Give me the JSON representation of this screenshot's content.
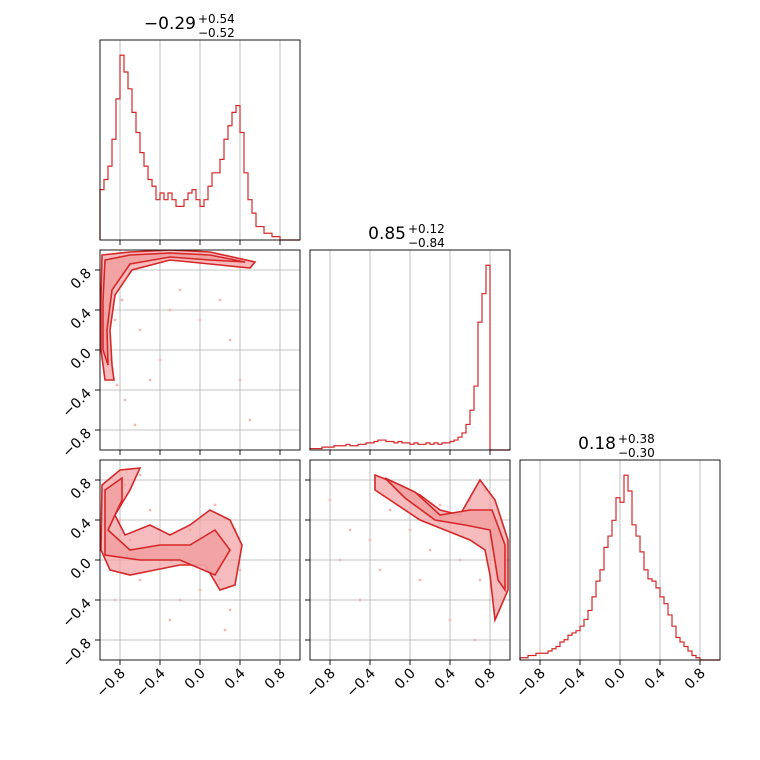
{
  "figure": {
    "kind": "corner-plot",
    "line_color": "#d62728",
    "fill_color": "#f2a0a1",
    "dot_color": "#f5b8b8"
  },
  "titles": [
    {
      "median": "−0.29",
      "upper": "+0.54",
      "lower": "−0.52"
    },
    {
      "median": "0.85",
      "upper": "+0.12",
      "lower": "−0.84"
    },
    {
      "median": "0.18",
      "upper": "+0.38",
      "lower": "−0.30"
    }
  ],
  "ticks": [
    "−0.8",
    "−0.4",
    "0.0",
    "0.4",
    "0.8"
  ],
  "chart_data": [
    {
      "type": "histogram",
      "panel": "param-1",
      "xlim": [
        -1,
        1
      ],
      "bin_width": 0.04,
      "x_start": -1.0,
      "values": [
        15,
        18,
        22,
        30,
        42,
        55,
        50,
        45,
        38,
        32,
        26,
        22,
        18,
        16,
        12,
        14,
        12,
        14,
        12,
        10,
        10,
        12,
        14,
        15,
        12,
        10,
        12,
        16,
        20,
        20,
        24,
        30,
        34,
        38,
        40,
        32,
        20,
        12,
        8,
        4,
        4,
        2,
        2,
        1,
        1,
        0,
        0,
        0,
        0,
        0
      ],
      "grid": true
    },
    {
      "type": "scatter-contour",
      "panel": "param-1-vs-param-2",
      "xlim": [
        -1,
        1
      ],
      "ylim": [
        -1,
        1
      ],
      "points": [
        [
          -0.9,
          0.6
        ],
        [
          -0.85,
          0.3
        ],
        [
          -0.95,
          0.0
        ],
        [
          -0.88,
          -0.2
        ],
        [
          -0.8,
          0.75
        ],
        [
          -0.7,
          0.85
        ],
        [
          -0.6,
          0.92
        ],
        [
          -0.5,
          0.95
        ],
        [
          -0.3,
          0.96
        ],
        [
          -0.1,
          0.94
        ],
        [
          0.1,
          0.92
        ],
        [
          0.3,
          0.9
        ],
        [
          0.45,
          0.88
        ],
        [
          -0.92,
          0.45
        ],
        [
          -0.97,
          0.15
        ],
        [
          -0.9,
          -0.1
        ],
        [
          -0.83,
          -0.35
        ],
        [
          -0.75,
          -0.5
        ],
        [
          -0.6,
          0.2
        ],
        [
          -0.4,
          -0.1
        ],
        [
          0.2,
          0.5
        ],
        [
          -0.2,
          0.6
        ],
        [
          0.4,
          -0.3
        ],
        [
          -0.65,
          -0.75
        ],
        [
          -0.5,
          -0.3
        ],
        [
          0.0,
          0.3
        ],
        [
          0.3,
          0.1
        ],
        [
          -0.3,
          0.4
        ],
        [
          0.5,
          -0.7
        ],
        [
          -0.78,
          0.5
        ]
      ],
      "contour_levels": [
        [
          [
            -0.98,
            0.95
          ],
          [
            -0.7,
            0.98
          ],
          [
            -0.3,
            1.0
          ],
          [
            0.1,
            0.98
          ],
          [
            0.55,
            0.88
          ],
          [
            0.5,
            0.82
          ],
          [
            0.1,
            0.86
          ],
          [
            -0.3,
            0.9
          ],
          [
            -0.68,
            0.8
          ],
          [
            -0.85,
            0.55
          ],
          [
            -0.9,
            0.2
          ],
          [
            -0.88,
            -0.15
          ],
          [
            -0.86,
            -0.3
          ],
          [
            -0.95,
            -0.3
          ],
          [
            -0.99,
            0.0
          ],
          [
            -0.99,
            0.5
          ]
        ],
        [
          [
            -0.95,
            0.9
          ],
          [
            -0.7,
            0.95
          ],
          [
            -0.3,
            0.97
          ],
          [
            0.1,
            0.95
          ],
          [
            0.45,
            0.88
          ],
          [
            0.1,
            0.9
          ],
          [
            -0.3,
            0.93
          ],
          [
            -0.7,
            0.86
          ],
          [
            -0.88,
            0.6
          ],
          [
            -0.93,
            0.2
          ],
          [
            -0.92,
            -0.15
          ],
          [
            -0.97,
            0.0
          ],
          [
            -0.97,
            0.5
          ]
        ]
      ]
    },
    {
      "type": "scatter-contour",
      "panel": "param-1-vs-param-3",
      "xlim": [
        -1,
        1
      ],
      "ylim": [
        -1,
        1
      ],
      "points": [
        [
          -0.7,
          0.2
        ],
        [
          -0.5,
          0.1
        ],
        [
          -0.3,
          0.0
        ],
        [
          -0.1,
          0.3
        ],
        [
          0.1,
          0.2
        ],
        [
          0.3,
          0.1
        ],
        [
          0.2,
          -0.2
        ],
        [
          -0.4,
          0.3
        ],
        [
          -0.6,
          -0.2
        ],
        [
          -0.8,
          0.4
        ],
        [
          -0.9,
          0.1
        ],
        [
          0.0,
          -0.3
        ],
        [
          0.3,
          -0.5
        ],
        [
          -0.2,
          -0.4
        ],
        [
          0.35,
          0.3
        ],
        [
          -0.75,
          0.75
        ],
        [
          -0.6,
          0.85
        ],
        [
          -0.85,
          0.55
        ],
        [
          0.15,
          0.55
        ],
        [
          -0.5,
          0.5
        ],
        [
          0.4,
          -0.1
        ],
        [
          -0.3,
          -0.6
        ],
        [
          0.25,
          -0.7
        ],
        [
          -0.85,
          -0.4
        ]
      ],
      "contour_levels": [
        [
          [
            -0.98,
            0.75
          ],
          [
            -0.8,
            0.9
          ],
          [
            -0.6,
            0.92
          ],
          [
            -0.7,
            0.7
          ],
          [
            -0.85,
            0.45
          ],
          [
            -0.75,
            0.25
          ],
          [
            -0.5,
            0.35
          ],
          [
            -0.3,
            0.25
          ],
          [
            -0.1,
            0.35
          ],
          [
            0.1,
            0.5
          ],
          [
            0.3,
            0.4
          ],
          [
            0.42,
            0.15
          ],
          [
            0.35,
            -0.25
          ],
          [
            0.2,
            -0.3
          ],
          [
            0.05,
            -0.05
          ],
          [
            -0.2,
            -0.05
          ],
          [
            -0.45,
            -0.1
          ],
          [
            -0.7,
            -0.15
          ],
          [
            -0.9,
            -0.1
          ],
          [
            -0.99,
            0.1
          ]
        ],
        [
          [
            -0.95,
            0.7
          ],
          [
            -0.78,
            0.82
          ],
          [
            -0.78,
            0.6
          ],
          [
            -0.92,
            0.3
          ],
          [
            -0.7,
            0.1
          ],
          [
            -0.4,
            0.15
          ],
          [
            -0.1,
            0.15
          ],
          [
            0.15,
            0.3
          ],
          [
            0.3,
            0.1
          ],
          [
            0.15,
            -0.15
          ],
          [
            -0.2,
            0.0
          ],
          [
            -0.6,
            0.0
          ],
          [
            -0.95,
            0.05
          ]
        ]
      ]
    },
    {
      "type": "histogram",
      "panel": "param-2",
      "xlim": [
        -1,
        1
      ],
      "bin_width": 0.04,
      "x_start": -1.0,
      "values": [
        1,
        1,
        1,
        2,
        2,
        2,
        3,
        3,
        3,
        4,
        3,
        3,
        4,
        4,
        5,
        5,
        6,
        7,
        7,
        6,
        6,
        5,
        6,
        5,
        5,
        4,
        5,
        4,
        4,
        5,
        4,
        5,
        4,
        5,
        5,
        6,
        7,
        9,
        12,
        18,
        28,
        45,
        90,
        110,
        130,
        0,
        0,
        0,
        0,
        0
      ],
      "grid": true
    },
    {
      "type": "scatter-contour",
      "panel": "param-2-vs-param-3",
      "xlim": [
        -1,
        1
      ],
      "ylim": [
        -1,
        1
      ],
      "points": [
        [
          -0.7,
          0.0
        ],
        [
          -0.4,
          0.2
        ],
        [
          -0.2,
          0.5
        ],
        [
          0.0,
          0.3
        ],
        [
          0.2,
          0.1
        ],
        [
          0.5,
          0.0
        ],
        [
          0.7,
          -0.2
        ],
        [
          0.8,
          0.4
        ],
        [
          0.9,
          0.1
        ],
        [
          0.85,
          -0.5
        ],
        [
          0.6,
          0.6
        ],
        [
          0.3,
          0.55
        ],
        [
          -0.5,
          -0.4
        ],
        [
          -0.8,
          0.6
        ],
        [
          0.4,
          -0.6
        ],
        [
          0.1,
          -0.2
        ],
        [
          -0.3,
          -0.1
        ],
        [
          0.65,
          -0.8
        ],
        [
          0.75,
          0.7
        ],
        [
          -0.6,
          0.3
        ]
      ],
      "contour_levels": [
        [
          [
            -0.35,
            0.85
          ],
          [
            -0.1,
            0.75
          ],
          [
            0.1,
            0.65
          ],
          [
            0.3,
            0.5
          ],
          [
            0.5,
            0.45
          ],
          [
            0.7,
            0.8
          ],
          [
            0.85,
            0.6
          ],
          [
            0.98,
            0.2
          ],
          [
            0.98,
            -0.3
          ],
          [
            0.85,
            -0.6
          ],
          [
            0.8,
            -0.15
          ],
          [
            0.75,
            0.1
          ],
          [
            0.6,
            0.2
          ],
          [
            0.35,
            0.3
          ],
          [
            0.1,
            0.4
          ],
          [
            -0.2,
            0.6
          ],
          [
            -0.35,
            0.7
          ]
        ],
        [
          [
            -0.25,
            0.82
          ],
          [
            0.05,
            0.68
          ],
          [
            0.3,
            0.45
          ],
          [
            0.6,
            0.5
          ],
          [
            0.82,
            0.5
          ],
          [
            0.95,
            0.15
          ],
          [
            0.95,
            -0.3
          ],
          [
            0.88,
            -0.2
          ],
          [
            0.8,
            0.3
          ],
          [
            0.55,
            0.35
          ],
          [
            0.25,
            0.4
          ],
          [
            -0.05,
            0.62
          ]
        ]
      ]
    },
    {
      "type": "histogram",
      "panel": "param-3",
      "xlim": [
        -1,
        1
      ],
      "bin_width": 0.04,
      "x_start": -1.0,
      "values": [
        1,
        1,
        2,
        2,
        3,
        3,
        3,
        4,
        5,
        6,
        8,
        9,
        11,
        12,
        13,
        15,
        18,
        22,
        28,
        35,
        40,
        50,
        55,
        62,
        72,
        70,
        82,
        75,
        60,
        55,
        48,
        40,
        36,
        35,
        32,
        28,
        25,
        20,
        15,
        10,
        8,
        6,
        4,
        2,
        1,
        0,
        0,
        0,
        0,
        0
      ],
      "grid": true
    }
  ]
}
